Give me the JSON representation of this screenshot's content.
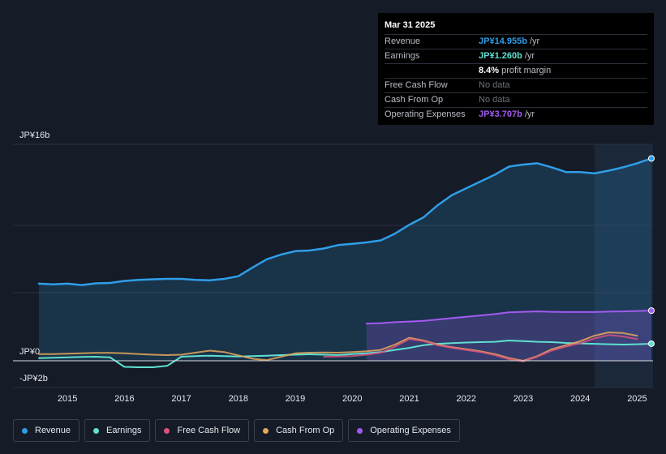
{
  "tooltip": {
    "date": "Mar 31 2025",
    "rows": [
      {
        "label": "Revenue",
        "value": "JP¥14.955b",
        "unit": "/yr",
        "style": "blue"
      },
      {
        "label": "Earnings",
        "value": "JP¥1.260b",
        "unit": "/yr",
        "style": "teal"
      },
      {
        "label": "",
        "value": "8.4%",
        "unit": "profit margin",
        "style": "white-b"
      },
      {
        "label": "Free Cash Flow",
        "value": "No data",
        "unit": "",
        "style": "nodata"
      },
      {
        "label": "Cash From Op",
        "value": "No data",
        "unit": "",
        "style": "nodata"
      },
      {
        "label": "Operating Expenses",
        "value": "JP¥3.707b",
        "unit": "/yr",
        "style": "purple"
      }
    ]
  },
  "legend": [
    {
      "label": "Revenue",
      "color": "#2f9ee8"
    },
    {
      "label": "Earnings",
      "color": "#5fe0d1"
    },
    {
      "label": "Free Cash Flow",
      "color": "#d9537e"
    },
    {
      "label": "Cash From Op",
      "color": "#e8a85a"
    },
    {
      "label": "Operating Expenses",
      "color": "#a25bf0"
    }
  ],
  "chart_data": {
    "type": "line",
    "title": "",
    "xlabel": "",
    "ylabel": "",
    "y_axis_labels": [
      {
        "value": 16,
        "label": "JP¥16b"
      },
      {
        "value": 0,
        "label": "JP¥0"
      },
      {
        "value": -2,
        "label": "-JP¥2b"
      }
    ],
    "ylim": [
      -2,
      16
    ],
    "xlim": [
      2014.2,
      2025.25
    ],
    "x_ticks": [
      2015,
      2016,
      2017,
      2018,
      2019,
      2020,
      2021,
      2022,
      2023,
      2024,
      2025
    ],
    "x_tick_labels": [
      "2015",
      "2016",
      "2017",
      "2018",
      "2019",
      "2020",
      "2021",
      "2022",
      "2023",
      "2024",
      "2025"
    ],
    "highlight_start": 2024.25,
    "series": [
      {
        "name": "Revenue",
        "color": "#2f9ee8",
        "fill": true,
        "end_marker": true,
        "points": [
          [
            2014.5,
            5.7
          ],
          [
            2014.75,
            5.65
          ],
          [
            2015.0,
            5.7
          ],
          [
            2015.25,
            5.6
          ],
          [
            2015.5,
            5.72
          ],
          [
            2015.75,
            5.75
          ],
          [
            2016.0,
            5.9
          ],
          [
            2016.25,
            5.98
          ],
          [
            2016.5,
            6.02
          ],
          [
            2016.75,
            6.05
          ],
          [
            2017.0,
            6.05
          ],
          [
            2017.25,
            5.98
          ],
          [
            2017.5,
            5.95
          ],
          [
            2017.75,
            6.05
          ],
          [
            2018.0,
            6.25
          ],
          [
            2018.25,
            6.9
          ],
          [
            2018.5,
            7.5
          ],
          [
            2018.75,
            7.85
          ],
          [
            2019.0,
            8.1
          ],
          [
            2019.25,
            8.15
          ],
          [
            2019.5,
            8.3
          ],
          [
            2019.75,
            8.55
          ],
          [
            2020.0,
            8.65
          ],
          [
            2020.25,
            8.75
          ],
          [
            2020.5,
            8.9
          ],
          [
            2020.75,
            9.4
          ],
          [
            2021.0,
            10.05
          ],
          [
            2021.25,
            10.6
          ],
          [
            2021.5,
            11.5
          ],
          [
            2021.75,
            12.25
          ],
          [
            2022.0,
            12.75
          ],
          [
            2022.25,
            13.25
          ],
          [
            2022.5,
            13.75
          ],
          [
            2022.75,
            14.35
          ],
          [
            2023.0,
            14.5
          ],
          [
            2023.25,
            14.6
          ],
          [
            2023.5,
            14.3
          ],
          [
            2023.75,
            13.95
          ],
          [
            2024.0,
            13.95
          ],
          [
            2024.25,
            13.85
          ],
          [
            2024.5,
            14.05
          ],
          [
            2024.75,
            14.3
          ],
          [
            2025.0,
            14.6
          ],
          [
            2025.25,
            14.955
          ]
        ]
      },
      {
        "name": "Operating Expenses",
        "color": "#a25bf0",
        "fill": true,
        "end_marker": true,
        "points": [
          [
            2020.25,
            2.75
          ],
          [
            2020.5,
            2.78
          ],
          [
            2020.75,
            2.85
          ],
          [
            2021.0,
            2.9
          ],
          [
            2021.25,
            2.95
          ],
          [
            2021.5,
            3.05
          ],
          [
            2021.75,
            3.15
          ],
          [
            2022.0,
            3.25
          ],
          [
            2022.25,
            3.35
          ],
          [
            2022.5,
            3.45
          ],
          [
            2022.75,
            3.58
          ],
          [
            2023.0,
            3.62
          ],
          [
            2023.25,
            3.65
          ],
          [
            2023.5,
            3.62
          ],
          [
            2023.75,
            3.6
          ],
          [
            2024.0,
            3.6
          ],
          [
            2024.25,
            3.6
          ],
          [
            2024.5,
            3.63
          ],
          [
            2024.75,
            3.65
          ],
          [
            2025.0,
            3.68
          ],
          [
            2025.25,
            3.707
          ]
        ]
      },
      {
        "name": "Earnings",
        "color": "#5fe0d1",
        "fill": false,
        "end_marker": true,
        "points": [
          [
            2014.5,
            0.2
          ],
          [
            2014.75,
            0.22
          ],
          [
            2015.0,
            0.25
          ],
          [
            2015.25,
            0.28
          ],
          [
            2015.5,
            0.3
          ],
          [
            2015.75,
            0.25
          ],
          [
            2016.0,
            -0.45
          ],
          [
            2016.25,
            -0.48
          ],
          [
            2016.5,
            -0.48
          ],
          [
            2016.75,
            -0.38
          ],
          [
            2017.0,
            0.3
          ],
          [
            2017.25,
            0.35
          ],
          [
            2017.5,
            0.38
          ],
          [
            2017.75,
            0.35
          ],
          [
            2018.0,
            0.32
          ],
          [
            2018.25,
            0.35
          ],
          [
            2018.5,
            0.38
          ],
          [
            2018.75,
            0.42
          ],
          [
            2019.0,
            0.45
          ],
          [
            2019.25,
            0.48
          ],
          [
            2019.5,
            0.45
          ],
          [
            2019.75,
            0.42
          ],
          [
            2020.0,
            0.5
          ],
          [
            2020.25,
            0.55
          ],
          [
            2020.5,
            0.65
          ],
          [
            2020.75,
            0.8
          ],
          [
            2021.0,
            0.95
          ],
          [
            2021.25,
            1.15
          ],
          [
            2021.5,
            1.25
          ],
          [
            2021.75,
            1.3
          ],
          [
            2022.0,
            1.35
          ],
          [
            2022.25,
            1.38
          ],
          [
            2022.5,
            1.4
          ],
          [
            2022.75,
            1.5
          ],
          [
            2023.0,
            1.45
          ],
          [
            2023.25,
            1.4
          ],
          [
            2023.5,
            1.38
          ],
          [
            2023.75,
            1.32
          ],
          [
            2024.0,
            1.28
          ],
          [
            2024.25,
            1.25
          ],
          [
            2024.5,
            1.22
          ],
          [
            2024.75,
            1.2
          ],
          [
            2025.0,
            1.22
          ],
          [
            2025.25,
            1.26
          ]
        ]
      },
      {
        "name": "Cash From Op",
        "color": "#e8a85a",
        "fill": false,
        "end_marker": false,
        "points": [
          [
            2014.5,
            0.5
          ],
          [
            2014.75,
            0.5
          ],
          [
            2015.0,
            0.52
          ],
          [
            2015.25,
            0.55
          ],
          [
            2015.5,
            0.58
          ],
          [
            2015.75,
            0.58
          ],
          [
            2016.0,
            0.55
          ],
          [
            2016.25,
            0.5
          ],
          [
            2016.5,
            0.45
          ],
          [
            2016.75,
            0.42
          ],
          [
            2017.0,
            0.45
          ],
          [
            2017.25,
            0.6
          ],
          [
            2017.5,
            0.75
          ],
          [
            2017.75,
            0.65
          ],
          [
            2018.0,
            0.4
          ],
          [
            2018.25,
            0.15
          ],
          [
            2018.5,
            0.05
          ],
          [
            2018.75,
            0.3
          ],
          [
            2019.0,
            0.55
          ],
          [
            2019.25,
            0.6
          ],
          [
            2019.5,
            0.62
          ],
          [
            2019.75,
            0.6
          ],
          [
            2020.0,
            0.65
          ],
          [
            2020.25,
            0.7
          ],
          [
            2020.5,
            0.8
          ],
          [
            2020.75,
            1.2
          ],
          [
            2021.0,
            1.7
          ],
          [
            2021.25,
            1.5
          ],
          [
            2021.5,
            1.2
          ],
          [
            2021.75,
            1.0
          ],
          [
            2022.0,
            0.85
          ],
          [
            2022.25,
            0.7
          ],
          [
            2022.5,
            0.5
          ],
          [
            2022.75,
            0.2
          ],
          [
            2023.0,
            0.0
          ],
          [
            2023.25,
            0.35
          ],
          [
            2023.5,
            0.85
          ],
          [
            2023.75,
            1.15
          ],
          [
            2024.0,
            1.45
          ],
          [
            2024.25,
            1.85
          ],
          [
            2024.5,
            2.1
          ],
          [
            2024.75,
            2.05
          ],
          [
            2025.0,
            1.85
          ]
        ]
      },
      {
        "name": "Free Cash Flow",
        "color": "#d9537e",
        "fill": false,
        "end_marker": false,
        "points": [
          [
            2019.5,
            0.3
          ],
          [
            2019.75,
            0.32
          ],
          [
            2020.0,
            0.35
          ],
          [
            2020.25,
            0.45
          ],
          [
            2020.5,
            0.6
          ],
          [
            2020.75,
            1.05
          ],
          [
            2021.0,
            1.6
          ],
          [
            2021.25,
            1.45
          ],
          [
            2021.5,
            1.15
          ],
          [
            2021.75,
            0.95
          ],
          [
            2022.0,
            0.8
          ],
          [
            2022.25,
            0.65
          ],
          [
            2022.5,
            0.42
          ],
          [
            2022.75,
            0.12
          ],
          [
            2023.0,
            -0.05
          ],
          [
            2023.25,
            0.3
          ],
          [
            2023.5,
            0.75
          ],
          [
            2023.75,
            1.05
          ],
          [
            2024.0,
            1.3
          ],
          [
            2024.25,
            1.65
          ],
          [
            2024.5,
            1.9
          ],
          [
            2024.75,
            1.8
          ],
          [
            2025.0,
            1.6
          ]
        ]
      }
    ]
  }
}
